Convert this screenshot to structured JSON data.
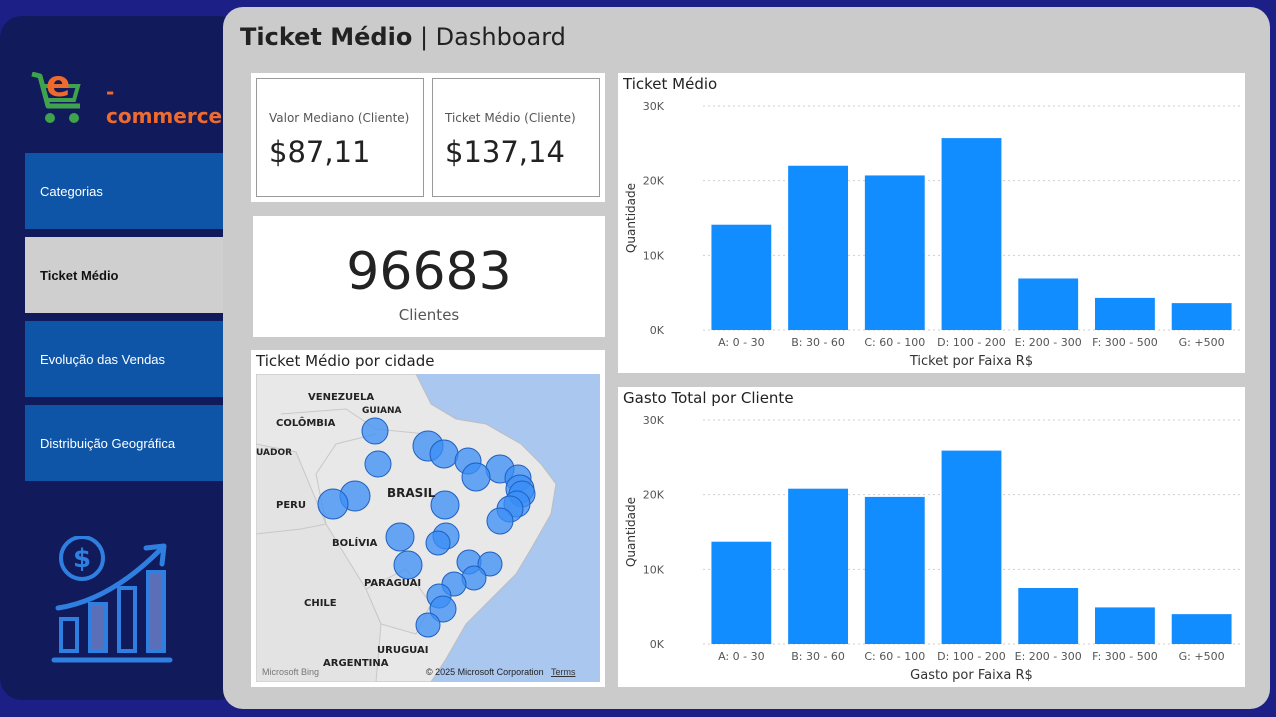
{
  "sidebar": {
    "logo_text": "-commerce",
    "logo_letter": "e",
    "nav": [
      {
        "label": "Categorias",
        "active": false
      },
      {
        "label": "Ticket Médio",
        "active": true
      },
      {
        "label": "Evolução das Vendas",
        "active": false
      },
      {
        "label": "Distribuição Geográfica",
        "active": false
      }
    ]
  },
  "header": {
    "title_bold": "Ticket Médio",
    "title_rest": "| Dashboard"
  },
  "kpis": [
    {
      "label": "Valor Mediano (Cliente)",
      "value": "$87,11"
    },
    {
      "label": "Ticket Médio (Cliente)",
      "value": "$137,14"
    }
  ],
  "clients": {
    "value": "96683",
    "label": "Clientes"
  },
  "map": {
    "title": "Ticket Médio por cidade",
    "labels": [
      "VENEZUELA",
      "GUIANA",
      "COLÔMBIA",
      "UADOR",
      "BRASIL",
      "PERU",
      "BOLÍVIA",
      "PARAGUAI",
      "CHILE",
      "URUGUAI",
      "ARGENTINA"
    ],
    "brand": "Microsoft Bing",
    "copyright": "© 2025 Microsoft Corporation",
    "terms": "Terms"
  },
  "colors": {
    "bar": "#118dff",
    "bubble": "#3a8ef5",
    "nav": "#0e55a8",
    "nav_active": "#cfcfcf"
  },
  "chart_data": [
    {
      "type": "bar",
      "title": "Ticket Médio",
      "xlabel": "Ticket por Faixa R$",
      "ylabel": "Quantidade",
      "categories": [
        "A: 0 - 30",
        "B: 30 - 60",
        "C: 60 - 100",
        "D: 100 - 200",
        "E: 200 - 300",
        "F: 300 - 500",
        "G: +500"
      ],
      "values": [
        14100,
        22000,
        20700,
        25700,
        6900,
        4300,
        3600
      ],
      "ylim": [
        0,
        30000
      ],
      "yticks": [
        0,
        10000,
        20000,
        30000
      ],
      "ytick_labels": [
        "0K",
        "10K",
        "20K",
        "30K"
      ],
      "grid": true
    },
    {
      "type": "bar",
      "title": "Gasto Total por Cliente",
      "xlabel": "Gasto por Faixa R$",
      "ylabel": "Quantidade",
      "categories": [
        "A: 0 - 30",
        "B: 30 - 60",
        "C: 60 - 100",
        "D: 100 - 200",
        "E: 200 - 300",
        "F: 300 - 500",
        "G: +500"
      ],
      "values": [
        13700,
        20800,
        19700,
        25900,
        7500,
        4900,
        4000
      ],
      "ylim": [
        0,
        30000
      ],
      "yticks": [
        0,
        10000,
        20000,
        30000
      ],
      "ytick_labels": [
        "0K",
        "10K",
        "20K",
        "30K"
      ],
      "grid": true
    }
  ]
}
